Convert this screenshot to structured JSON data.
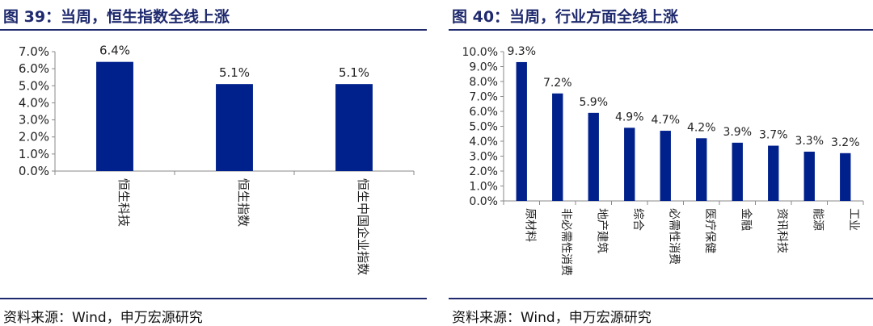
{
  "panels": [
    {
      "title": "图 39：当周，恒生指数全线上涨",
      "source": "资料来源：Wind，申万宏源研究"
    },
    {
      "title": "图 40：当周，行业方面全线上涨",
      "source": "资料来源：Wind，申万宏源研究"
    }
  ],
  "chart_data": [
    {
      "type": "bar",
      "categories": [
        "恒生科技",
        "恒生指数",
        "恒生中国企业指数"
      ],
      "values": [
        6.4,
        5.1,
        5.1
      ],
      "data_labels": [
        "6.4%",
        "5.1%",
        "5.1%"
      ],
      "ylim": [
        0,
        7
      ],
      "yticks": [
        "0.0%",
        "1.0%",
        "2.0%",
        "3.0%",
        "4.0%",
        "5.0%",
        "6.0%",
        "7.0%"
      ],
      "grid": false,
      "bar_color": "#00208c"
    },
    {
      "type": "bar",
      "categories": [
        "原材料",
        "非必需性消费",
        "地产建筑",
        "综合",
        "必需性消费",
        "医疗保健",
        "金融",
        "资讯科技",
        "能源",
        "工业"
      ],
      "values": [
        9.3,
        7.2,
        5.9,
        4.9,
        4.7,
        4.2,
        3.9,
        3.7,
        3.3,
        3.2
      ],
      "data_labels": [
        "9.3%",
        "7.2%",
        "5.9%",
        "4.9%",
        "4.7%",
        "4.2%",
        "3.9%",
        "3.7%",
        "3.3%",
        "3.2%"
      ],
      "ylim": [
        0,
        10
      ],
      "yticks": [
        "0.0%",
        "1.0%",
        "2.0%",
        "3.0%",
        "4.0%",
        "5.0%",
        "6.0%",
        "7.0%",
        "8.0%",
        "9.0%",
        "10.0%"
      ],
      "grid": false,
      "bar_color": "#00208c"
    }
  ]
}
